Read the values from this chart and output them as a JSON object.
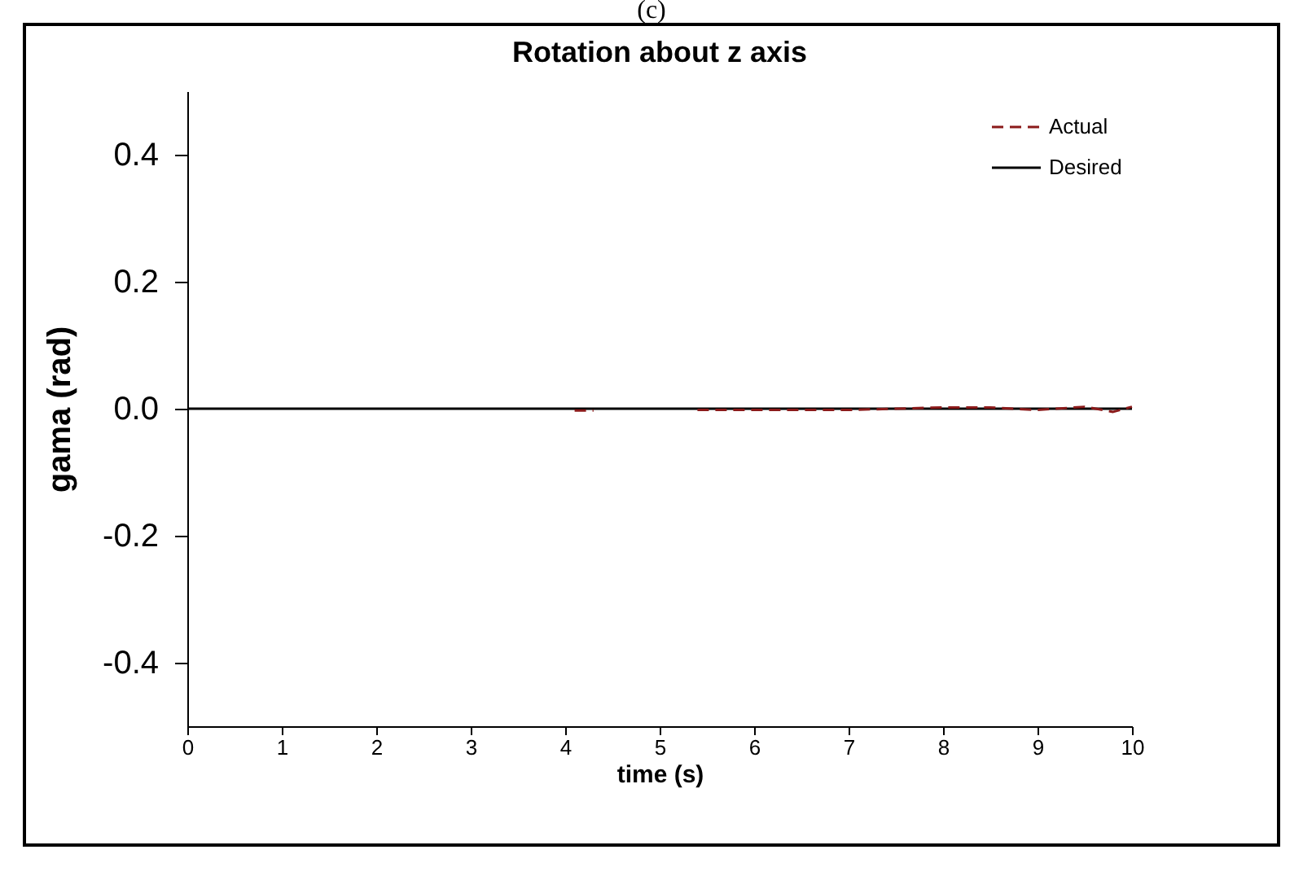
{
  "chart_data": {
    "type": "line",
    "title": "Rotation about z axis",
    "xlabel": "time (s)",
    "ylabel": "gama (rad)",
    "annotations": [
      "(c)"
    ],
    "xlim": [
      0,
      10
    ],
    "xticks": [
      0,
      1,
      2,
      3,
      4,
      5,
      6,
      7,
      8,
      9,
      10
    ],
    "ylim": [
      -0.5,
      0.5
    ],
    "yticks": [
      -0.4,
      -0.2,
      {
        "value": 0,
        "label": "0.0"
      },
      0.2,
      0.4
    ],
    "grid": false,
    "legend": "top right",
    "series": [
      {
        "name": "Actual",
        "color": "#8b1a1a",
        "line_style": "dashed",
        "x": [
          4.1,
          4.3,
          4.8,
          5.4,
          6,
          7,
          7.5,
          8,
          8.5,
          9,
          9.5,
          9.8,
          10
        ],
        "values": [
          -0.003,
          -0.003,
          null,
          -0.002,
          -0.002,
          -0.002,
          0,
          0.002,
          0.002,
          -0.002,
          0.003,
          -0.005,
          0.003
        ]
      },
      {
        "name": "Desired",
        "color": "#000000",
        "line_style": "solid",
        "x": [
          0,
          10
        ],
        "values": [
          0,
          0
        ]
      }
    ]
  }
}
